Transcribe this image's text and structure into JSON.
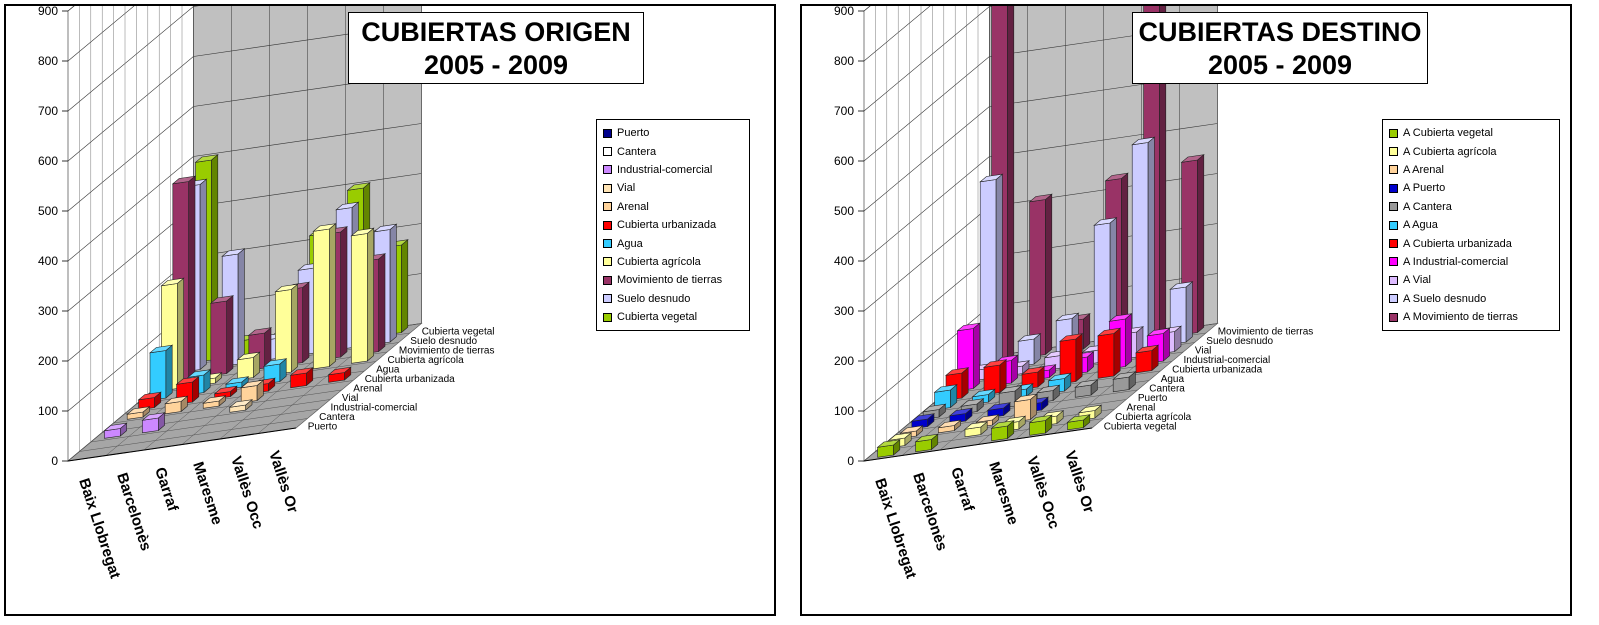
{
  "chart_data": [
    {
      "type": "bar",
      "title": "CUBIERTAS ORIGEN",
      "subtitle": "2005 - 2009",
      "categories": [
        "Baix Llobregat",
        "Barcelonès",
        "Garraf",
        "Maresme",
        "Vallès Occ",
        "Vallès Or"
      ],
      "yticks": [
        0,
        100,
        200,
        300,
        400,
        500,
        600,
        700,
        800,
        900
      ],
      "ylim": [
        0,
        900
      ],
      "grid": true,
      "legend_position": "right",
      "depth_labels": [
        "Puerto",
        "Cantera",
        "Industrial-comercial",
        "Vial",
        "Arenal",
        "Cubierta urbanizada",
        "Agua",
        "Cubierta agrícola",
        "Movimiento de tierras",
        "Suelo desnudo",
        "Cubierta vegetal"
      ],
      "series": [
        {
          "name": "Puerto",
          "color": "#00008b",
          "values": [
            0,
            0,
            0,
            0,
            0,
            0
          ]
        },
        {
          "name": "Cantera",
          "color": "#ffffff",
          "values": [
            0,
            0,
            0,
            0,
            0,
            0
          ]
        },
        {
          "name": "Industrial-comercial",
          "color": "#cc88ff",
          "values": [
            15,
            25,
            0,
            0,
            0,
            0
          ]
        },
        {
          "name": "Vial",
          "color": "#ffe4b5",
          "values": [
            0,
            0,
            0,
            10,
            0,
            0
          ]
        },
        {
          "name": "Arenal",
          "color": "#ffd39b",
          "values": [
            10,
            20,
            10,
            30,
            0,
            0
          ]
        },
        {
          "name": "Cubierta urbanizada",
          "color": "#ff0000",
          "values": [
            20,
            40,
            10,
            15,
            25,
            15
          ]
        },
        {
          "name": "Agua",
          "color": "#33ccff",
          "values": [
            95,
            35,
            10,
            35,
            0,
            0
          ]
        },
        {
          "name": "Cubierta agrícola",
          "color": "#ffff99",
          "values": [
            210,
            10,
            40,
            165,
            275,
            255
          ]
        },
        {
          "name": "Movimiento de tierras",
          "color": "#993366",
          "values": [
            395,
            145,
            70,
            150,
            250,
            185
          ]
        },
        {
          "name": "Suelo desnudo",
          "color": "#ccccff",
          "values": [
            370,
            220,
            40,
            170,
            280,
            225
          ]
        },
        {
          "name": "Cubierta vegetal",
          "color": "#99cc00",
          "values": [
            400,
            30,
            30,
            220,
            300,
            175
          ]
        }
      ]
    },
    {
      "type": "bar",
      "title": "CUBIERTAS DESTINO",
      "subtitle": "2005 - 2009",
      "categories": [
        "Baix Llobregat",
        "Barcelonès",
        "Garraf",
        "Maresme",
        "Vallès Occ",
        "Vallès Or"
      ],
      "yticks": [
        0,
        100,
        200,
        300,
        400,
        500,
        600,
        700,
        800,
        900
      ],
      "ylim": [
        0,
        900
      ],
      "grid": true,
      "legend_position": "right",
      "depth_labels": [
        "Cubierta vegetal",
        "Cubierta agrícola",
        "Arenal",
        "Puerto",
        "Cantera",
        "Agua",
        "Cubierta urbanizada",
        "Industrial-comercial",
        "Vial",
        "Suelo desnudo",
        "Movimiento de tierras"
      ],
      "series": [
        {
          "name": "A Cubierta vegetal",
          "color": "#99cc00",
          "values": [
            20,
            20,
            0,
            25,
            25,
            15
          ]
        },
        {
          "name": "A Cubierta agrícola",
          "color": "#ffff99",
          "values": [
            15,
            0,
            15,
            15,
            15,
            15
          ]
        },
        {
          "name": "A Arenal",
          "color": "#ffd39b",
          "values": [
            10,
            10,
            10,
            40,
            0,
            0
          ]
        },
        {
          "name": "A Puerto",
          "color": "#0000cc",
          "values": [
            15,
            15,
            15,
            15,
            0,
            0
          ]
        },
        {
          "name": "A Cantera",
          "color": "#999999",
          "values": [
            15,
            15,
            30,
            20,
            20,
            25
          ]
        },
        {
          "name": "A Agua",
          "color": "#33ccff",
          "values": [
            35,
            15,
            15,
            25,
            0,
            0
          ]
        },
        {
          "name": "A Cubierta urbanizada",
          "color": "#ff0000",
          "values": [
            50,
            55,
            30,
            85,
            85,
            40
          ]
        },
        {
          "name": "A Industrial-comercial",
          "color": "#ff00ff",
          "values": [
            120,
            45,
            15,
            30,
            95,
            55
          ]
        },
        {
          "name": "A Vial",
          "color": "#ddbbff",
          "values": [
            20,
            15,
            25,
            25,
            50,
            40
          ]
        },
        {
          "name": "A Suelo desnudo",
          "color": "#ccccff",
          "values": [
            380,
            50,
            80,
            260,
            410,
            110
          ]
        },
        {
          "name": "A Movimiento de tierras",
          "color": "#993366",
          "values": [
            910,
            310,
            60,
            330,
            740,
            345
          ]
        }
      ]
    }
  ]
}
